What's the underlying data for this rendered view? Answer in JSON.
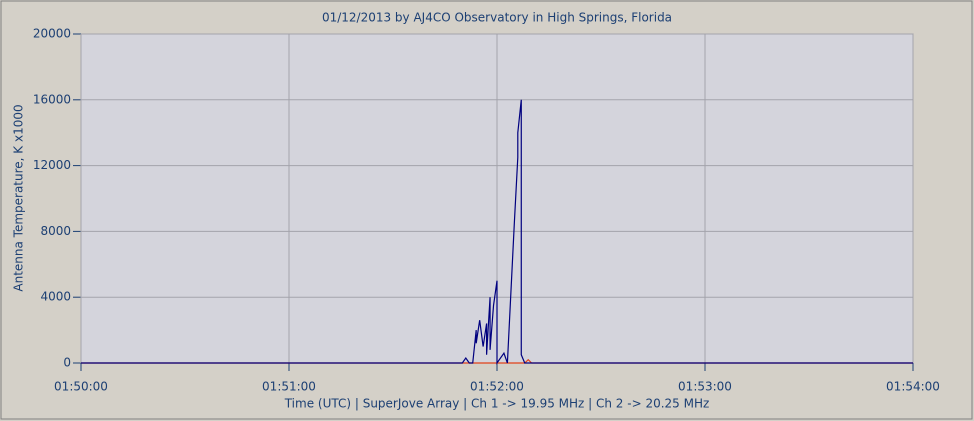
{
  "chart_data": {
    "type": "line",
    "title": "01/12/2013  by  AJ4CO Observatory  in  High Springs, Florida",
    "x_label": "Time (UTC)  |  SuperJove Array  |  Ch 1 -> 19.95 MHz  |  Ch 2 -> 20.25 MHz",
    "y_label": "Antenna Temperature, K x1000",
    "xlim": [
      "01:50:00",
      "01:54:00"
    ],
    "xticks": [
      "01:50:00",
      "01:51:00",
      "01:52:00",
      "01:53:00",
      "01:54:00"
    ],
    "ylim": [
      0,
      20000
    ],
    "yticks": [
      0,
      4000,
      8000,
      12000,
      16000,
      20000
    ],
    "grid": true,
    "series": [
      {
        "color": "#00007f",
        "x": [
          "01:50:00",
          "01:51:50",
          "01:51:51",
          "01:51:52",
          "01:51:53",
          "01:51:54",
          "01:51:54",
          "01:51:55",
          "01:51:56",
          "01:51:57",
          "01:51:57",
          "01:51:58",
          "01:51:58",
          "01:51:59",
          "01:52:00",
          "01:52:00",
          "01:52:02",
          "01:52:03",
          "01:52:05",
          "01:52:06",
          "01:52:06",
          "01:52:07",
          "01:52:07",
          "01:52:08",
          "01:54:00"
        ],
        "values": [
          0,
          0,
          300,
          0,
          0,
          2000,
          1200,
          2600,
          1000,
          2400,
          500,
          4000,
          800,
          3500,
          5000,
          0,
          600,
          0,
          8500,
          12500,
          14000,
          16000,
          500,
          0,
          0
        ]
      },
      {
        "color": "#e0401a",
        "x": [
          "01:50:00",
          "01:52:08",
          "01:52:09",
          "01:52:10",
          "01:54:00"
        ],
        "values": [
          0,
          0,
          200,
          0,
          0
        ]
      }
    ]
  }
}
